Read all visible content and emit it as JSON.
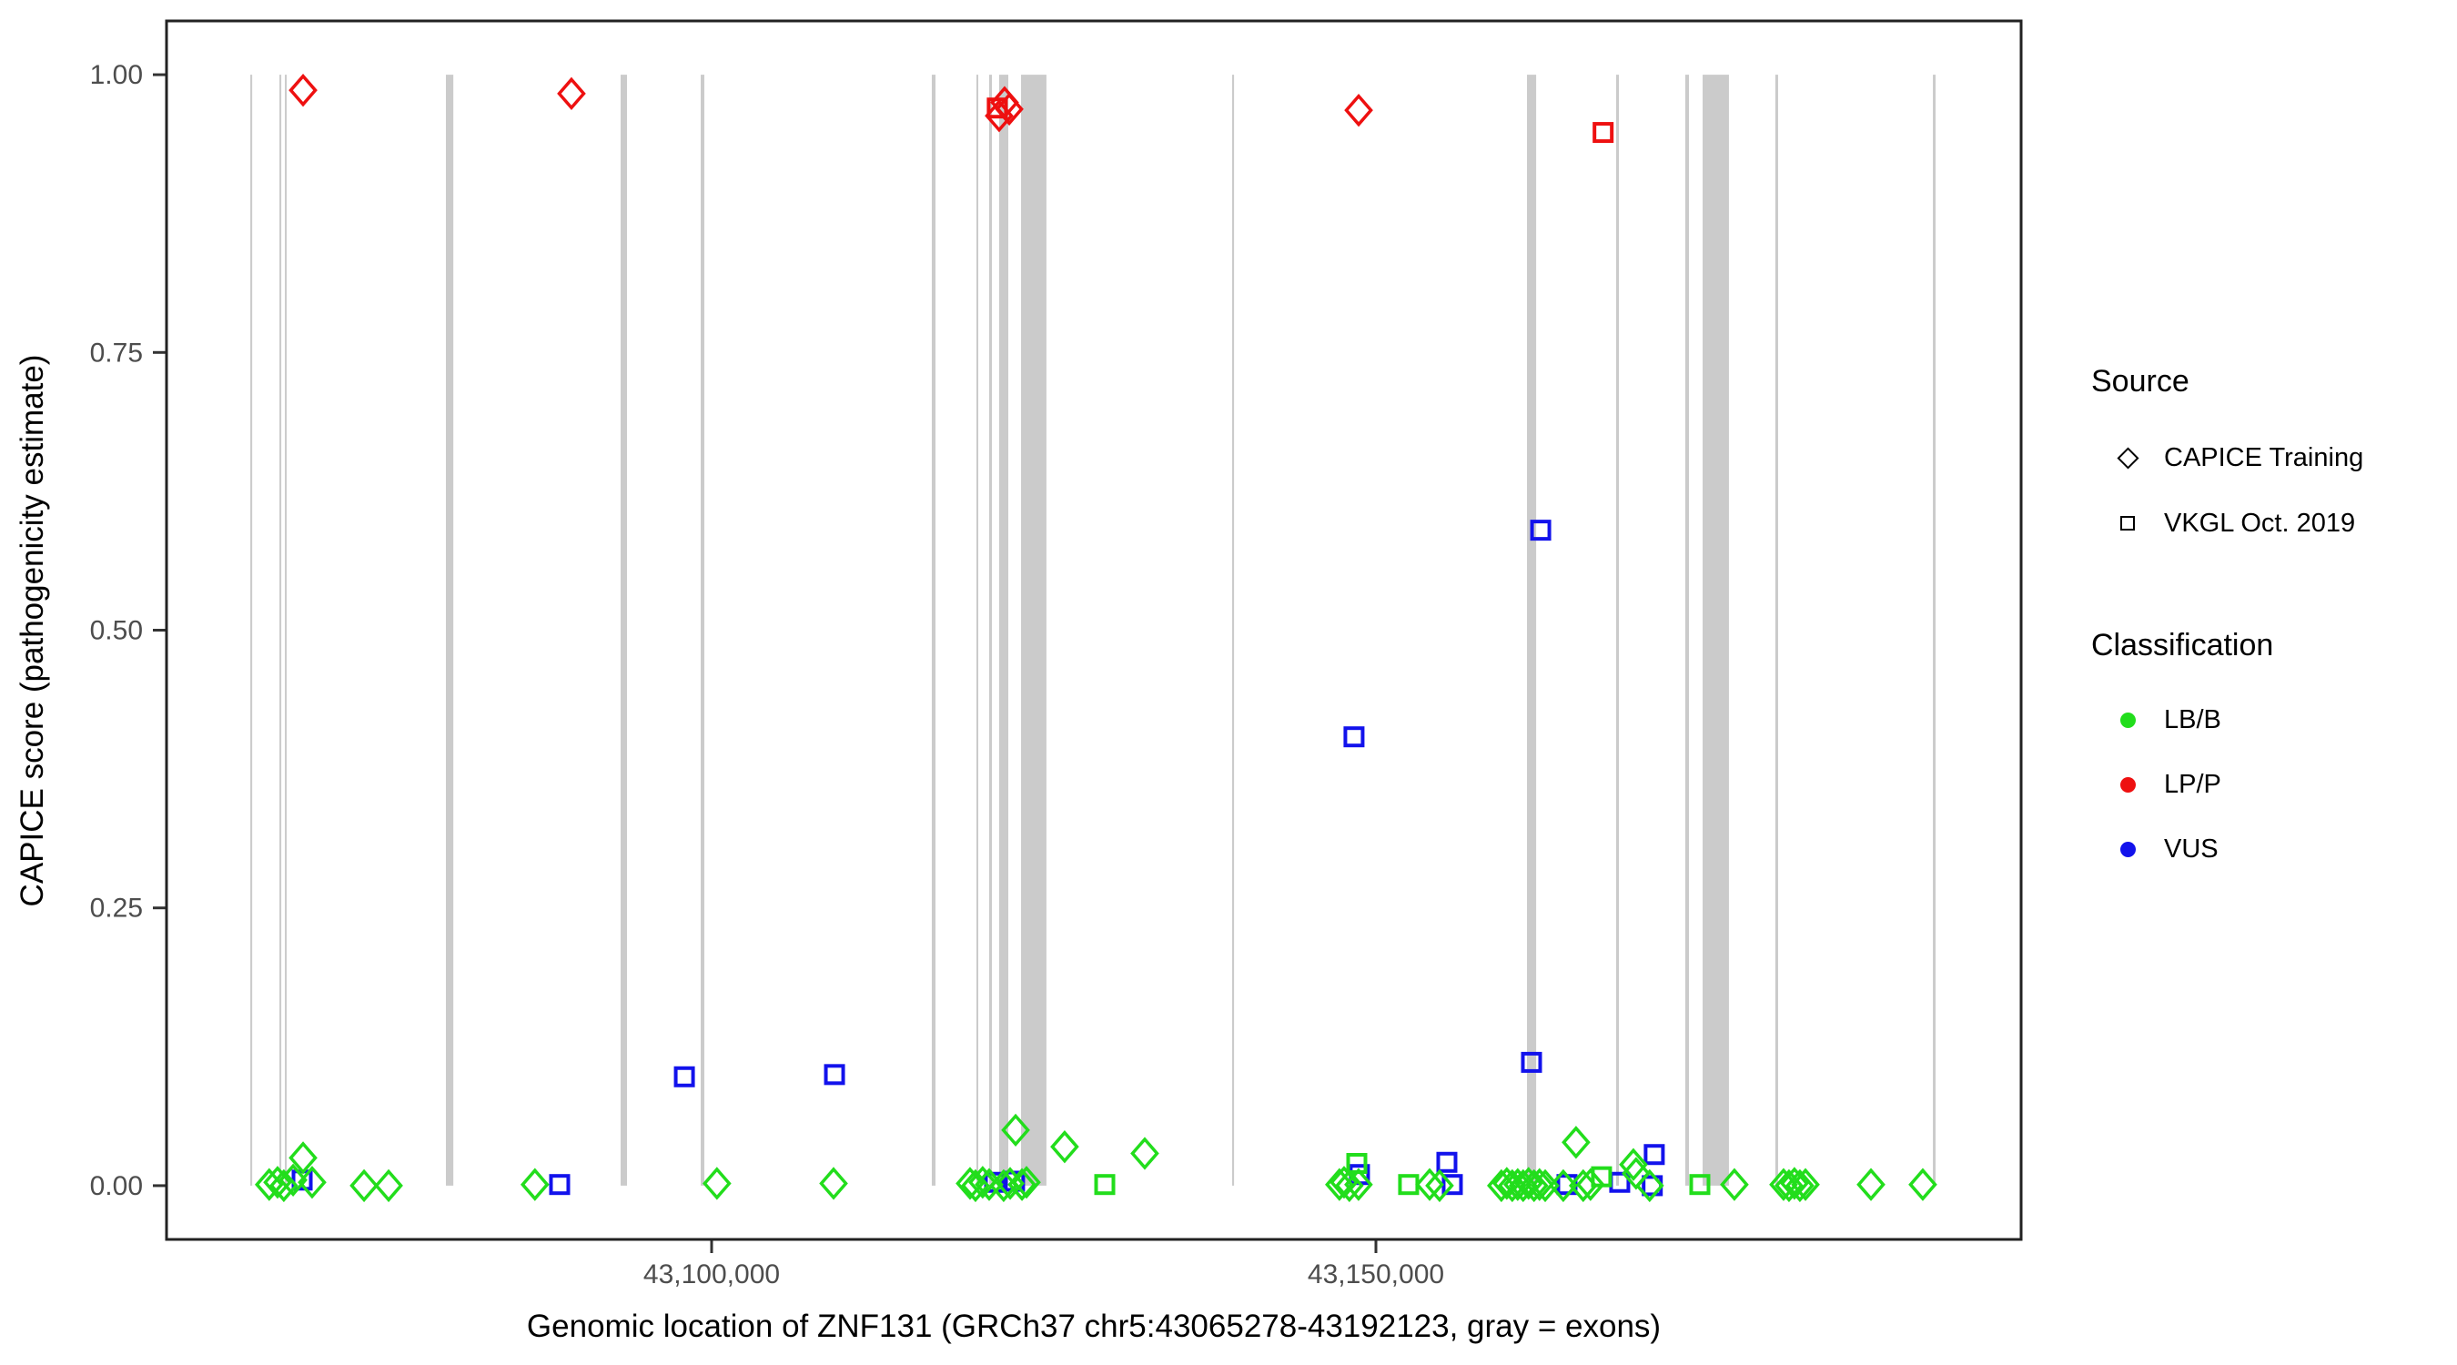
{
  "figure": {
    "y_axis_title": "CAPICE score (pathogenicity estimate)",
    "x_axis_title": "Genomic location of ZNF131 (GRCh37 chr5:43065278-43192123, gray = exons)"
  },
  "legend": {
    "source_title": "Source",
    "source_items": [
      {
        "label": "CAPICE Training",
        "symbol": "diamond"
      },
      {
        "label": "VKGL Oct. 2019",
        "symbol": "square"
      }
    ],
    "classification_title": "Classification",
    "classification_items": [
      {
        "label": "LB/B",
        "color": "#22dd1c"
      },
      {
        "label": "LP/P",
        "color": "#ee1010"
      },
      {
        "label": "VUS",
        "color": "#1212ec"
      }
    ]
  },
  "chart_data": {
    "type": "scatter",
    "title": "",
    "xlabel": "Genomic location of ZNF131 (GRCh37 chr5:43065278-43192123, gray = exons)",
    "ylabel": "CAPICE score (pathogenicity estimate)",
    "xlim": [
      43058973,
      43198560
    ],
    "ylim": [
      -0.0484,
      1.0484
    ],
    "x_ticks": [
      {
        "value": 43100000,
        "label": "43,100,000"
      },
      {
        "value": 43150000,
        "label": "43,150,000"
      }
    ],
    "y_ticks": [
      {
        "value": 0.0,
        "label": "0.00"
      },
      {
        "value": 0.25,
        "label": "0.25"
      },
      {
        "value": 0.5,
        "label": "0.50"
      },
      {
        "value": 0.75,
        "label": "0.75"
      },
      {
        "value": 1.0,
        "label": "1.00"
      }
    ],
    "grid": false,
    "legend_position": "right",
    "colors": {
      "LB/B": "#22dd1c",
      "LP/P": "#ee1010",
      "VUS": "#1212ec",
      "exon": "#cbcbcb",
      "border": "#222222",
      "tick_text": "#4d4d4d"
    },
    "shapes": {
      "CAPICE Training": "open-diamond",
      "VKGL Oct. 2019": "open-square"
    },
    "exons": [
      [
        43065278,
        43065420
      ],
      [
        43067470,
        43067610
      ],
      [
        43067880,
        43068020
      ],
      [
        43080000,
        43080560
      ],
      [
        43093150,
        43093630
      ],
      [
        43099180,
        43099450
      ],
      [
        43116570,
        43116850
      ],
      [
        43119930,
        43120070
      ],
      [
        43120890,
        43121100
      ],
      [
        43121640,
        43122330
      ],
      [
        43123290,
        43125200
      ],
      [
        43139180,
        43139320
      ],
      [
        43161370,
        43162060
      ],
      [
        43168080,
        43168290
      ],
      [
        43173280,
        43173560
      ],
      [
        43174590,
        43176570
      ],
      [
        43180060,
        43180270
      ],
      [
        43191920,
        43192123
      ]
    ],
    "point_format": [
      "genomic_position",
      "capice_score",
      "source",
      "classification"
    ],
    "points": [
      [
        43069250,
        0.986,
        "CAPICE Training",
        "LP/P"
      ],
      [
        43089450,
        0.983,
        "CAPICE Training",
        "LP/P"
      ],
      [
        43121500,
        0.97,
        "VKGL Oct. 2019",
        "LP/P"
      ],
      [
        43121640,
        0.963,
        "CAPICE Training",
        "LP/P"
      ],
      [
        43122050,
        0.975,
        "CAPICE Training",
        "LP/P"
      ],
      [
        43122400,
        0.969,
        "CAPICE Training",
        "LP/P"
      ],
      [
        43148700,
        0.968,
        "CAPICE Training",
        "LP/P"
      ],
      [
        43167100,
        0.948,
        "VKGL Oct. 2019",
        "LP/P"
      ],
      [
        43069180,
        0.005,
        "VKGL Oct. 2019",
        "VUS"
      ],
      [
        43088560,
        0.001,
        "VKGL Oct. 2019",
        "VUS"
      ],
      [
        43097950,
        0.098,
        "VKGL Oct. 2019",
        "VUS"
      ],
      [
        43109250,
        0.1,
        "VKGL Oct. 2019",
        "VUS"
      ],
      [
        43121300,
        0.003,
        "VKGL Oct. 2019",
        "VUS"
      ],
      [
        43122800,
        0.004,
        "VKGL Oct. 2019",
        "VUS"
      ],
      [
        43148350,
        0.404,
        "VKGL Oct. 2019",
        "VUS"
      ],
      [
        43148760,
        0.01,
        "VKGL Oct. 2019",
        "VUS"
      ],
      [
        43155340,
        0.021,
        "VKGL Oct. 2019",
        "VUS"
      ],
      [
        43155750,
        0.001,
        "VKGL Oct. 2019",
        "VUS"
      ],
      [
        43161710,
        0.111,
        "VKGL Oct. 2019",
        "VUS"
      ],
      [
        43162400,
        0.59,
        "VKGL Oct. 2019",
        "VUS"
      ],
      [
        43164380,
        0.001,
        "VKGL Oct. 2019",
        "VUS"
      ],
      [
        43168350,
        0.003,
        "VKGL Oct. 2019",
        "VUS"
      ],
      [
        43170800,
        0.0,
        "VKGL Oct. 2019",
        "VUS"
      ],
      [
        43170950,
        0.028,
        "VKGL Oct. 2019",
        "VUS"
      ],
      [
        43066700,
        0.001,
        "CAPICE Training",
        "LB/B"
      ],
      [
        43067330,
        0.003,
        "CAPICE Training",
        "LB/B"
      ],
      [
        43067800,
        0.0,
        "CAPICE Training",
        "LB/B"
      ],
      [
        43068500,
        0.005,
        "CAPICE Training",
        "LB/B"
      ],
      [
        43069250,
        0.025,
        "CAPICE Training",
        "LB/B"
      ],
      [
        43069930,
        0.003,
        "CAPICE Training",
        "LB/B"
      ],
      [
        43073840,
        0.0,
        "CAPICE Training",
        "LB/B"
      ],
      [
        43075690,
        0.0,
        "CAPICE Training",
        "LB/B"
      ],
      [
        43086700,
        0.001,
        "CAPICE Training",
        "LB/B"
      ],
      [
        43100400,
        0.002,
        "CAPICE Training",
        "LB/B"
      ],
      [
        43109180,
        0.002,
        "CAPICE Training",
        "LB/B"
      ],
      [
        43119450,
        0.002,
        "CAPICE Training",
        "LB/B"
      ],
      [
        43119860,
        0.0,
        "CAPICE Training",
        "LB/B"
      ],
      [
        43120400,
        0.003,
        "CAPICE Training",
        "LB/B"
      ],
      [
        43120890,
        0.001,
        "CAPICE Training",
        "LB/B"
      ],
      [
        43121980,
        0.0,
        "CAPICE Training",
        "LB/B"
      ],
      [
        43122470,
        0.002,
        "CAPICE Training",
        "LB/B"
      ],
      [
        43122880,
        0.05,
        "CAPICE Training",
        "LB/B"
      ],
      [
        43123360,
        0.001,
        "CAPICE Training",
        "LB/B"
      ],
      [
        43123700,
        0.003,
        "CAPICE Training",
        "LB/B"
      ],
      [
        43126570,
        0.035,
        "CAPICE Training",
        "LB/B"
      ],
      [
        43132600,
        0.029,
        "CAPICE Training",
        "LB/B"
      ],
      [
        43129590,
        0.001,
        "VKGL Oct. 2019",
        "LB/B"
      ],
      [
        43147250,
        0.001,
        "CAPICE Training",
        "LB/B"
      ],
      [
        43147600,
        0.003,
        "CAPICE Training",
        "LB/B"
      ],
      [
        43148000,
        0.0,
        "CAPICE Training",
        "LB/B"
      ],
      [
        43148690,
        0.001,
        "CAPICE Training",
        "LB/B"
      ],
      [
        43148560,
        0.02,
        "VKGL Oct. 2019",
        "LB/B"
      ],
      [
        43152460,
        0.001,
        "VKGL Oct. 2019",
        "LB/B"
      ],
      [
        43154040,
        0.001,
        "CAPICE Training",
        "LB/B"
      ],
      [
        43154790,
        0.0,
        "CAPICE Training",
        "LB/B"
      ],
      [
        43159440,
        0.0,
        "CAPICE Training",
        "LB/B"
      ],
      [
        43159850,
        0.002,
        "CAPICE Training",
        "LB/B"
      ],
      [
        43160260,
        0.0,
        "CAPICE Training",
        "LB/B"
      ],
      [
        43160670,
        0.001,
        "CAPICE Training",
        "LB/B"
      ],
      [
        43161080,
        0.0,
        "CAPICE Training",
        "LB/B"
      ],
      [
        43161490,
        0.002,
        "CAPICE Training",
        "LB/B"
      ],
      [
        43161900,
        0.0,
        "CAPICE Training",
        "LB/B"
      ],
      [
        43162310,
        0.001,
        "CAPICE Training",
        "LB/B"
      ],
      [
        43162740,
        0.0,
        "CAPICE Training",
        "LB/B"
      ],
      [
        43164100,
        0.0,
        "CAPICE Training",
        "LB/B"
      ],
      [
        43165060,
        0.039,
        "CAPICE Training",
        "LB/B"
      ],
      [
        43165600,
        0.0,
        "CAPICE Training",
        "LB/B"
      ],
      [
        43166150,
        0.001,
        "CAPICE Training",
        "LB/B"
      ],
      [
        43166980,
        0.008,
        "VKGL Oct. 2019",
        "LB/B"
      ],
      [
        43169380,
        0.019,
        "CAPICE Training",
        "LB/B"
      ],
      [
        43169580,
        0.011,
        "CAPICE Training",
        "LB/B"
      ],
      [
        43170600,
        0.0,
        "CAPICE Training",
        "LB/B"
      ],
      [
        43174380,
        0.001,
        "VKGL Oct. 2019",
        "LB/B"
      ],
      [
        43176980,
        0.001,
        "CAPICE Training",
        "LB/B"
      ],
      [
        43180680,
        0.001,
        "CAPICE Training",
        "LB/B"
      ],
      [
        43181090,
        0.0,
        "CAPICE Training",
        "LB/B"
      ],
      [
        43181500,
        0.002,
        "CAPICE Training",
        "LB/B"
      ],
      [
        43181910,
        0.0,
        "CAPICE Training",
        "LB/B"
      ],
      [
        43182330,
        0.001,
        "CAPICE Training",
        "LB/B"
      ],
      [
        43187260,
        0.001,
        "CAPICE Training",
        "LB/B"
      ],
      [
        43191160,
        0.001,
        "CAPICE Training",
        "LB/B"
      ]
    ]
  }
}
